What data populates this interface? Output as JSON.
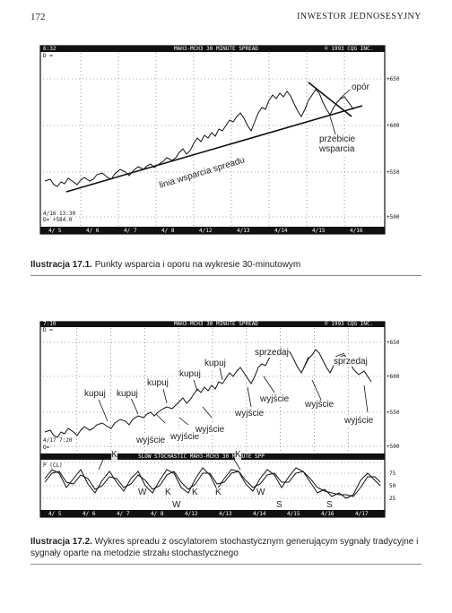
{
  "page": {
    "number": "172",
    "header": "INWESTOR JEDNOSESYJNY"
  },
  "figure1": {
    "header_left": "6:32",
    "header_left2": "D =",
    "header_center": "MAH3-MCH3 30 MINUTE SPREAD",
    "header_right": "© 1993 CQG INC.",
    "info_line1": "4/16  13:30",
    "info_line2": "O=  +584.0",
    "y_ticks": [
      "+650",
      "+600",
      "+550",
      "+500"
    ],
    "x_ticks": [
      "4/ 5",
      "4/ 6",
      "4/ 7",
      "4/ 8",
      "4/12",
      "4/13",
      "4/14",
      "4/15",
      "4/16"
    ],
    "annotations": {
      "resistance": "opór",
      "break_line1": "przebicie",
      "break_line2": "wsparcia",
      "support_line": "linia wsparcia spreadu"
    },
    "caption_label": "Ilustracja 17.1.",
    "caption_text": "Punkty wsparcia i oporu na wykresie 30-minutowym"
  },
  "figure2": {
    "header_left": "7:10",
    "header_left2": "D =",
    "header_center": "MAH3-MCH3 30 MINUTE SPREAD",
    "header_right": "© 1993 CQG INC.",
    "info_line": "4/17  7:20",
    "info_line2": "O=",
    "osc_header": "SLOW STOCHASTIC  MAH3-MCH3 30 MINUTE SPP",
    "osc_left": "P (CL)",
    "y_ticks": [
      "+650",
      "+600",
      "+550",
      "+500"
    ],
    "osc_ticks": [
      "75",
      "50",
      "25"
    ],
    "x_ticks": [
      "4/ 5",
      "4/ 6",
      "4/ 7",
      "4/ 8",
      "4/12",
      "4/13",
      "4/14",
      "4/15",
      "4/16",
      "4/17"
    ],
    "buy": "kupuj",
    "sell": "sprzedaj",
    "exit": "wyjście",
    "markers": [
      "K",
      "K",
      "W",
      "K",
      "K",
      "K",
      "W",
      "W",
      "S",
      "S"
    ],
    "caption_label": "Ilustracja 17.2.",
    "caption_text": "Wykres spreadu z oscylatorem stochastycznym generującym sygnały tradycyjne i sygnały oparte na metodzie strzału stochastycznego"
  }
}
